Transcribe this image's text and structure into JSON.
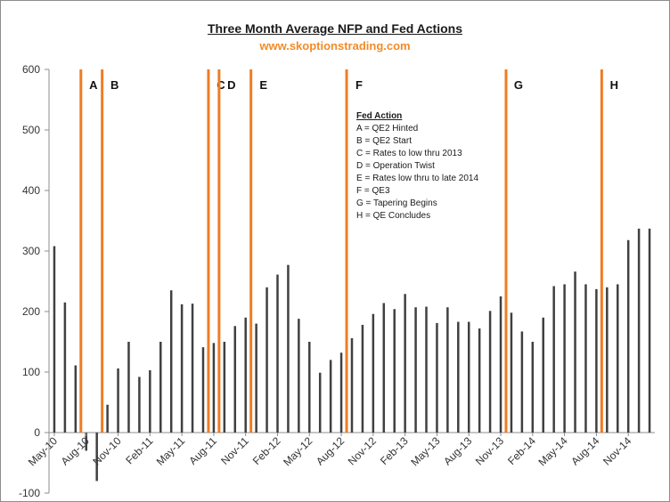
{
  "title": "Three Month Average NFP and Fed Actions",
  "subtitle": "www.skoptionstrading.com",
  "colors": {
    "bar": "#404040",
    "event_line": "#f07c22",
    "axis": "#8c8c8c",
    "subtitle": "#f28c28"
  },
  "legend": {
    "title": "Fed Action",
    "items": [
      "A = QE2 Hinted",
      "B = QE2 Start",
      "C = Rates to low thru 2013",
      "D = Operation Twist",
      "E = Rates low thru to late 2014",
      "F = QE3",
      "G = Tapering Begins",
      "H = QE Concludes"
    ]
  },
  "chart_data": {
    "type": "bar",
    "title": "Three Month Average NFP and Fed Actions",
    "subtitle": "www.skoptionstrading.com",
    "ylim": [
      -100,
      600
    ],
    "yticks": [
      -100,
      0,
      100,
      200,
      300,
      400,
      500,
      600
    ],
    "categories": [
      "May-10",
      "Jun-10",
      "Jul-10",
      "Aug-10",
      "Sep-10",
      "Oct-10",
      "Nov-10",
      "Dec-10",
      "Jan-11",
      "Feb-11",
      "Mar-11",
      "Apr-11",
      "May-11",
      "Jun-11",
      "Jul-11",
      "Aug-11",
      "Sep-11",
      "Oct-11",
      "Nov-11",
      "Dec-11",
      "Jan-12",
      "Feb-12",
      "Mar-12",
      "Apr-12",
      "May-12",
      "Jun-12",
      "Jul-12",
      "Aug-12",
      "Sep-12",
      "Oct-12",
      "Nov-12",
      "Dec-12",
      "Jan-13",
      "Feb-13",
      "Mar-13",
      "Apr-13",
      "May-13",
      "Jun-13",
      "Jul-13",
      "Aug-13",
      "Sep-13",
      "Oct-13",
      "Nov-13",
      "Dec-13",
      "Jan-14",
      "Feb-14",
      "Mar-14",
      "Apr-14",
      "May-14",
      "Jun-14",
      "Jul-14",
      "Aug-14",
      "Sep-14",
      "Oct-14",
      "Nov-14",
      "Dec-14",
      "Jan-15"
    ],
    "xtick_labels": [
      "May-10",
      "Aug-10",
      "Nov-10",
      "Feb-11",
      "May-11",
      "Aug-11",
      "Nov-11",
      "Feb-12",
      "May-12",
      "Aug-12",
      "Nov-12",
      "Feb-13",
      "May-13",
      "Aug-13",
      "Nov-13",
      "Feb-14",
      "May-14",
      "Aug-14",
      "Nov-14"
    ],
    "values": [
      308,
      215,
      111,
      -30,
      -80,
      46,
      106,
      150,
      92,
      103,
      150,
      235,
      212,
      213,
      141,
      148,
      150,
      176,
      190,
      180,
      240,
      261,
      277,
      188,
      150,
      99,
      120,
      132,
      156,
      178,
      196,
      214,
      204,
      229,
      207,
      208,
      181,
      207,
      183,
      183,
      172,
      201,
      225,
      198,
      167,
      150,
      190,
      242,
      245,
      266,
      245,
      237,
      240,
      245,
      318,
      337,
      337
    ],
    "events": [
      {
        "label": "A",
        "after": "Jul-10"
      },
      {
        "label": "B",
        "after": "Sep-10"
      },
      {
        "label": "C",
        "after": "Jul-11"
      },
      {
        "label": "D",
        "after": "Aug-11"
      },
      {
        "label": "E",
        "after": "Nov-11"
      },
      {
        "label": "F",
        "after": "Aug-12"
      },
      {
        "label": "G",
        "after": "Nov-13"
      },
      {
        "label": "H",
        "after": "Aug-14"
      }
    ]
  }
}
